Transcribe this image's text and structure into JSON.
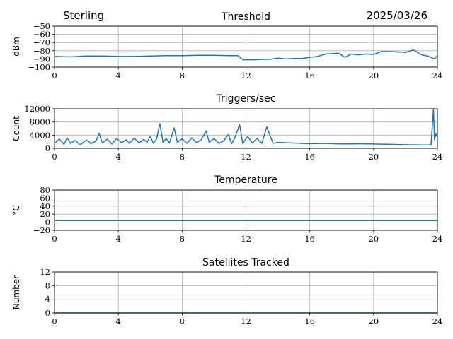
{
  "header": {
    "site": "Sterling",
    "date": "2025/03/26"
  },
  "colors": {
    "series": "#1f77b4",
    "grid": "#b0b0b0"
  },
  "chart_data": [
    {
      "id": "threshold",
      "type": "line",
      "title": "Threshold",
      "ylabel": "dBm",
      "xlim": [
        0,
        24
      ],
      "ylim": [
        -100,
        -50
      ],
      "xticks": [
        0,
        4,
        8,
        12,
        16,
        20,
        24
      ],
      "yticks": [
        -100,
        -90,
        -80,
        -70,
        -60,
        -50
      ],
      "ytick_labels": [
        "−100",
        "−90",
        "−80",
        "−70",
        "−60",
        "−50"
      ],
      "grid": true,
      "x": [
        0,
        1,
        2,
        3,
        4,
        5,
        6,
        7,
        8,
        9,
        10,
        11,
        11.5,
        11.8,
        12.5,
        13,
        13.5,
        14,
        14.5,
        15,
        15.5,
        16,
        16.5,
        17,
        17.8,
        18.2,
        18.6,
        19,
        19.5,
        20,
        20.5,
        21,
        21.5,
        22,
        22.5,
        23,
        23.5,
        23.8,
        24
      ],
      "y": [
        -87,
        -87.5,
        -86.5,
        -86.5,
        -87,
        -87,
        -86.5,
        -86,
        -86,
        -85.5,
        -85.5,
        -86,
        -86,
        -91,
        -91,
        -90.5,
        -90.5,
        -89,
        -90,
        -89.5,
        -89.5,
        -88,
        -87,
        -84,
        -83,
        -88,
        -84,
        -85,
        -84,
        -84.5,
        -81,
        -81,
        -81.5,
        -82,
        -79,
        -85,
        -87,
        -90,
        -86
      ]
    },
    {
      "id": "triggers",
      "type": "line",
      "title": "Triggers/sec",
      "ylabel": "Count",
      "xlim": [
        0,
        24
      ],
      "ylim": [
        0,
        12000
      ],
      "xticks": [
        0,
        4,
        8,
        12,
        16,
        20,
        24
      ],
      "yticks": [
        0,
        4000,
        8000,
        12000
      ],
      "ytick_labels": [
        "0",
        "4000",
        "8000",
        "12000"
      ],
      "grid": true,
      "x": [
        0,
        0.3,
        0.6,
        0.8,
        1.0,
        1.3,
        1.6,
        2.0,
        2.3,
        2.6,
        2.8,
        3.0,
        3.3,
        3.6,
        3.9,
        4.2,
        4.5,
        4.7,
        5.0,
        5.3,
        5.6,
        5.8,
        6.0,
        6.2,
        6.4,
        6.6,
        6.8,
        7.0,
        7.2,
        7.5,
        7.7,
        8.0,
        8.3,
        8.6,
        8.9,
        9.2,
        9.5,
        9.7,
        10.0,
        10.3,
        10.6,
        10.9,
        11.1,
        11.3,
        11.6,
        11.8,
        12.1,
        12.4,
        12.7,
        13.0,
        13.3,
        13.7,
        14.0,
        15.0,
        16.0,
        17.0,
        18.0,
        19.0,
        20.0,
        21.0,
        22.0,
        23.0,
        23.6,
        23.75,
        23.82,
        23.9,
        24.0
      ],
      "y": [
        1500,
        2800,
        1200,
        3200,
        1500,
        2400,
        1100,
        2500,
        1400,
        2200,
        4500,
        1600,
        2800,
        1300,
        3000,
        1700,
        2600,
        1500,
        3100,
        1600,
        2700,
        1800,
        3600,
        1500,
        2900,
        7500,
        1800,
        3000,
        1600,
        6200,
        1800,
        2900,
        1500,
        3200,
        1700,
        2600,
        5300,
        1800,
        3000,
        1500,
        2200,
        4200,
        1400,
        3200,
        7200,
        1400,
        3600,
        1600,
        3000,
        1500,
        6500,
        1500,
        1800,
        1600,
        1400,
        1500,
        1300,
        1400,
        1300,
        1200,
        1100,
        1000,
        1000,
        12000,
        2500,
        4500,
        3500
      ]
    },
    {
      "id": "temperature",
      "type": "line",
      "title": "Temperature",
      "ylabel": "°C",
      "xlim": [
        0,
        24
      ],
      "ylim": [
        -20,
        80
      ],
      "xticks": [
        0,
        4,
        8,
        12,
        16,
        20,
        24
      ],
      "yticks": [
        -20,
        0,
        20,
        40,
        60,
        80
      ],
      "ytick_labels": [
        "−20",
        "0",
        "20",
        "40",
        "60",
        "80"
      ],
      "grid": true,
      "x": [
        0,
        24
      ],
      "y": [
        4,
        4
      ]
    },
    {
      "id": "satellites",
      "type": "line",
      "title": "Satellites Tracked",
      "ylabel": "Number",
      "xlim": [
        0,
        24
      ],
      "ylim": [
        0,
        12
      ],
      "xticks": [
        0,
        4,
        8,
        12,
        16,
        20,
        24
      ],
      "yticks": [
        0,
        4,
        8,
        12
      ],
      "ytick_labels": [
        "0",
        "4",
        "8",
        "12"
      ],
      "grid": true,
      "x": [
        0,
        24
      ],
      "y": [
        0,
        0
      ]
    }
  ]
}
